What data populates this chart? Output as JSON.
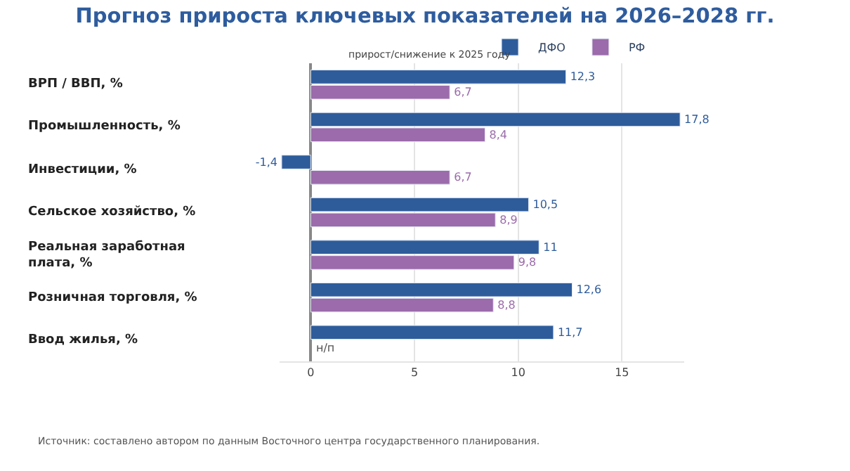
{
  "chart_data": {
    "type": "bar",
    "orientation": "horizontal",
    "title": "Прогноз прироста ключевых показателей на 2026–2028 гг.",
    "subtitle": "прирост/снижение к 2025 году",
    "categories": [
      "ВРП / ВВП, %",
      "Промышленность, %",
      "Инвестиции, %",
      "Сельское хозяйство, %",
      "Реальная заработная плата, %",
      "Розничная торговля, %",
      "Ввод жилья, %"
    ],
    "series": [
      {
        "name": "ДФО",
        "color": "#2e5c9b",
        "values": [
          12.3,
          17.8,
          -1.4,
          10.5,
          11,
          12.6,
          11.7
        ],
        "value_labels": [
          "12,3",
          "17,8",
          "-1,4",
          "10,5",
          "11",
          "12,6",
          "11,7"
        ]
      },
      {
        "name": "РФ",
        "color": "#9b6bab",
        "values": [
          6.7,
          8.4,
          6.7,
          8.9,
          9.8,
          8.8,
          null
        ],
        "value_labels": [
          "6,7",
          "8,4",
          "6,7",
          "8,9",
          "9,8",
          "8,8",
          "н/п"
        ]
      }
    ],
    "xlim": [
      -1.5,
      18
    ],
    "xticks": [
      0,
      5,
      10,
      15
    ],
    "grid": "x",
    "legend": "top right",
    "annotations": [
      "Источник: составлено автором по данным Восточного центра государственного планирования."
    ]
  }
}
